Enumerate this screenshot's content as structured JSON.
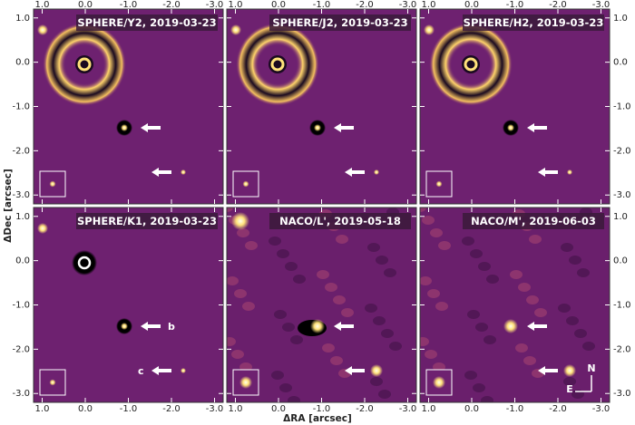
{
  "figure": {
    "xlabel": "ΔRA [arcsec]",
    "ylabel": "ΔDec [arcsec]",
    "xlim": [
      1.2,
      -3.2
    ],
    "ylim": [
      -3.2,
      1.2
    ],
    "xticks": [
      {
        "value": 1,
        "label": "1.0"
      },
      {
        "value": 0,
        "label": "0.0"
      },
      {
        "value": -1,
        "label": "-1.0"
      },
      {
        "value": -2,
        "label": "-2.0"
      },
      {
        "value": -3,
        "label": "-3.0"
      }
    ],
    "yticks": [
      {
        "value": 1,
        "label": "1.0"
      },
      {
        "value": 0,
        "label": "0.0"
      },
      {
        "value": -1,
        "label": "-1.0"
      },
      {
        "value": -2,
        "label": "-2.0"
      },
      {
        "value": -3,
        "label": "-3.0"
      }
    ],
    "panels": [
      {
        "title": "SPHERE/Y2, 2019-03-23"
      },
      {
        "title": "SPHERE/J2, 2019-03-23"
      },
      {
        "title": "SPHERE/H2, 2019-03-23"
      },
      {
        "title": "SPHERE/K1, 2019-03-23"
      },
      {
        "title": "NACO/L', 2019-05-18"
      },
      {
        "title": "NACO/M', 2019-06-03"
      }
    ],
    "companion_labels": [
      "b",
      "c"
    ],
    "compass": {
      "north": "N",
      "east": "E"
    }
  }
}
